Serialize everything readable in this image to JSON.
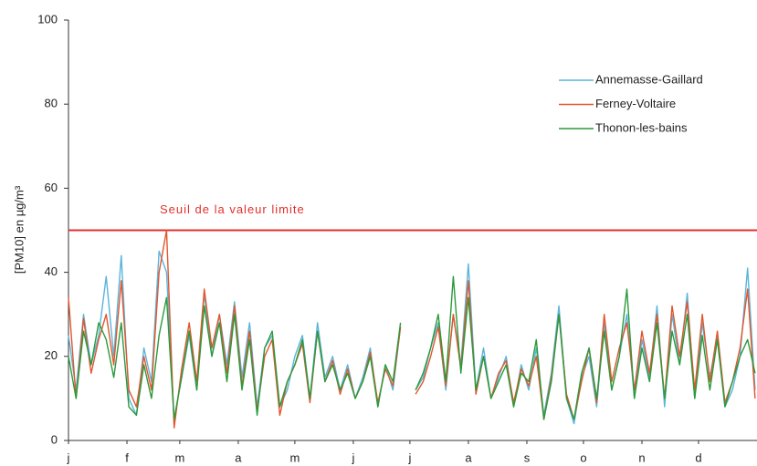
{
  "chart_data": {
    "type": "line",
    "y_label": "[PM10] en µg/m³",
    "xlim": [
      0,
      365
    ],
    "xticks": [
      {
        "value": 0,
        "label": "j"
      },
      {
        "value": 31,
        "label": "f"
      },
      {
        "value": 59,
        "label": "m"
      },
      {
        "value": 90,
        "label": "a"
      },
      {
        "value": 120,
        "label": "m"
      },
      {
        "value": 151,
        "label": "j"
      },
      {
        "value": 181,
        "label": "j"
      },
      {
        "value": 212,
        "label": "a"
      },
      {
        "value": 243,
        "label": "s"
      },
      {
        "value": 273,
        "label": "o"
      },
      {
        "value": 304,
        "label": "n"
      },
      {
        "value": 334,
        "label": "d"
      }
    ],
    "ylim": [
      0,
      100
    ],
    "yticks": [
      0,
      20,
      40,
      60,
      80,
      100
    ],
    "legend": "upper right",
    "threshold": {
      "value": 50,
      "label": "Seuil de la valeur limite",
      "color": "#e2302c"
    },
    "x": [
      0,
      4,
      8,
      12,
      16,
      20,
      24,
      28,
      32,
      36,
      40,
      44,
      48,
      52,
      56,
      60,
      64,
      68,
      72,
      76,
      80,
      84,
      88,
      92,
      96,
      100,
      104,
      108,
      112,
      116,
      120,
      124,
      128,
      132,
      136,
      140,
      144,
      148,
      152,
      156,
      160,
      164,
      168,
      172,
      176,
      180,
      184,
      188,
      192,
      196,
      200,
      204,
      208,
      212,
      216,
      220,
      224,
      228,
      232,
      236,
      240,
      244,
      248,
      252,
      256,
      260,
      264,
      268,
      272,
      276,
      280,
      284,
      288,
      292,
      296,
      300,
      304,
      308,
      312,
      316,
      320,
      324,
      328,
      332,
      336,
      340,
      344,
      348,
      352,
      356,
      360,
      364
    ],
    "series": [
      {
        "name": "Annemasse-Gaillard",
        "color": "#5ab4da",
        "values": [
          25,
          12,
          30,
          18,
          25,
          39,
          20,
          44,
          10,
          6,
          22,
          14,
          45,
          40,
          5,
          15,
          25,
          12,
          35,
          20,
          30,
          18,
          33,
          15,
          28,
          8,
          22,
          25,
          8,
          12,
          20,
          25,
          10,
          28,
          15,
          20,
          12,
          18,
          10,
          15,
          22,
          8,
          18,
          12,
          27,
          null,
          12,
          15,
          22,
          28,
          12,
          30,
          18,
          42,
          12,
          22,
          10,
          15,
          20,
          8,
          18,
          12,
          22,
          6,
          16,
          32,
          10,
          4,
          15,
          20,
          8,
          28,
          12,
          20,
          30,
          10,
          24,
          15,
          32,
          8,
          30,
          18,
          35,
          10,
          28,
          15,
          25,
          8,
          12,
          20,
          41,
          12
        ]
      },
      {
        "name": "Ferney-Voltaire",
        "color": "#e2562c",
        "values": [
          34,
          10,
          29,
          16,
          24,
          30,
          18,
          38,
          12,
          8,
          20,
          12,
          40,
          50,
          3,
          17,
          28,
          14,
          36,
          22,
          30,
          16,
          32,
          13,
          26,
          7,
          20,
          24,
          6,
          14,
          18,
          23,
          9,
          26,
          14,
          19,
          11,
          17,
          10,
          14,
          21,
          9,
          17,
          13,
          27,
          null,
          11,
          14,
          20,
          27,
          13,
          30,
          17,
          38,
          11,
          20,
          10,
          16,
          19,
          9,
          17,
          13,
          20,
          5,
          15,
          30,
          11,
          5,
          14,
          22,
          9,
          30,
          14,
          22,
          28,
          12,
          26,
          16,
          30,
          10,
          32,
          20,
          33,
          12,
          30,
          14,
          26,
          9,
          14,
          22,
          36,
          10
        ]
      },
      {
        "name": "Thonon-les-bains",
        "color": "#2a9a3a",
        "values": [
          20,
          10,
          26,
          18,
          28,
          24,
          15,
          28,
          8,
          6,
          18,
          10,
          25,
          34,
          5,
          15,
          26,
          12,
          32,
          20,
          28,
          14,
          30,
          12,
          24,
          6,
          22,
          26,
          8,
          14,
          18,
          24,
          10,
          26,
          14,
          18,
          12,
          16,
          10,
          14,
          20,
          8,
          18,
          14,
          28,
          null,
          12,
          16,
          22,
          30,
          14,
          39,
          16,
          34,
          12,
          20,
          10,
          14,
          18,
          8,
          16,
          14,
          24,
          5,
          14,
          30,
          10,
          5,
          16,
          22,
          10,
          26,
          12,
          20,
          36,
          10,
          22,
          14,
          28,
          10,
          26,
          18,
          30,
          10,
          25,
          12,
          24,
          8,
          14,
          20,
          24,
          16
        ]
      }
    ]
  }
}
